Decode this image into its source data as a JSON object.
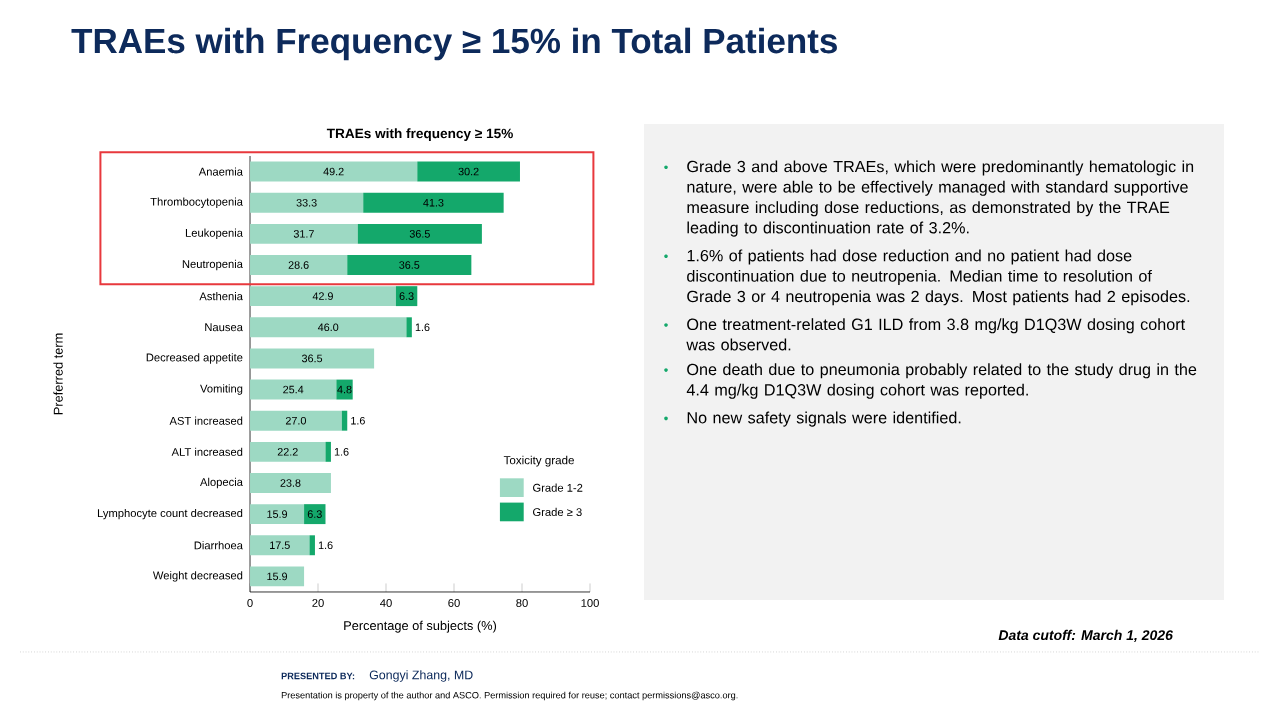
{
  "chart_data": [
    {
      "type": "other",
      "title": "TRAEs with Frequency ≥ 15% in Total Patients"
    },
    {
      "type": "bar",
      "orientation": "horizontal",
      "stacked": true,
      "title": "TRAEs with frequency ≥ 15%",
      "xlabel": "Percentage of subjects (%)",
      "ylabel": "Preferred term",
      "legend_title": "Toxicity grade",
      "legend": "bottom right",
      "categories": [
        "Anaemia",
        "Thrombocytopenia",
        "Leukopenia",
        "Neutropenia",
        "Asthenia",
        "Nausea",
        "Decreased appetite",
        "Vomiting",
        "AST increased",
        "ALT increased",
        "Alopecia",
        "Lymphocyte count decreased",
        "Diarrhoea",
        "Weight decreased"
      ],
      "series": [
        {
          "name": "Grade 1-2",
          "color": "#9dd9c3",
          "values": [
            49.2,
            33.3,
            31.7,
            28.6,
            42.9,
            46.0,
            36.5,
            25.4,
            27.0,
            22.2,
            23.8,
            15.9,
            17.5,
            15.9
          ],
          "value_labels": [
            "49.2",
            "33.3",
            "31.7",
            "28.6",
            "42.9",
            "46.0",
            "36.5",
            "25.4",
            "27.0",
            "22.2",
            "23.8",
            "15.9",
            "17.5",
            "15.9"
          ]
        },
        {
          "name": "Grade ≥ 3",
          "color": "#14a86b",
          "values": [
            30.2,
            41.3,
            36.5,
            36.5,
            6.3,
            1.6,
            null,
            4.8,
            1.6,
            1.6,
            null,
            6.3,
            1.6,
            null
          ],
          "value_labels": [
            "30.2",
            "41.3",
            "36.5",
            "36.5",
            "6.3",
            "1.6",
            null,
            "4.8",
            "1.6",
            "1.6",
            null,
            "6.3",
            "1.6",
            null
          ]
        }
      ],
      "xlim": [
        0,
        100
      ],
      "xticks": [
        0,
        20,
        40,
        60,
        80,
        100
      ]
    },
    {
      "type": "other",
      "annotations": [
        "Grade 3 and above TRAEs, which were predominantly hematologic in nature, were able to be effectively managed with standard supportive measure including dose reductions, as demonstrated by the TRAE leading to discontinuation rate of 3.2%.",
        "1.6% of patients had dose reduction and no patient had dose discontinuation due to neutropenia. Median time to resolution of Grade 3 or 4 neutropenia was 2 days. Most patients had 2 episodes.",
        "One treatment-related G1 ILD from 3.8 mg/kg D1Q3W dosing cohort was observed.",
        "One death due to pneumonia probably related to the study drug in the 4.4 mg/kg D1Q3W dosing cohort was reported.",
        "No new safety signals were identified.",
        "Data cutoff: March 1, 2026",
        "PRESENTED BY:",
        "Gongyi Zhang, MD",
        "Presentation is property of the author and ASCO. Permission required for reuse; contact permissions@asco.org."
      ]
    }
  ]
}
